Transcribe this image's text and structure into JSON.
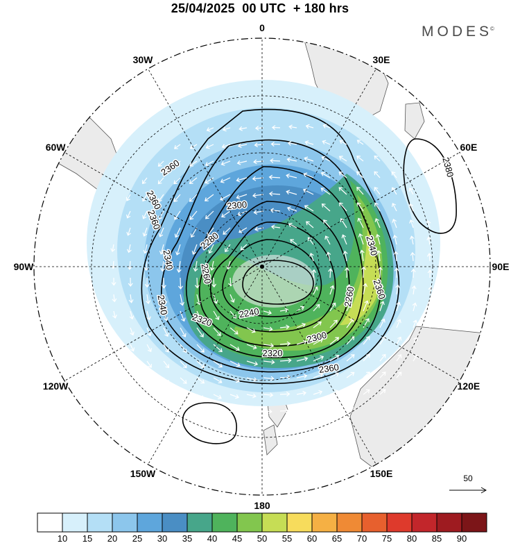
{
  "header": {
    "title": "25/04/2025  00 UTC  + 180 hrs",
    "brand": "MODES",
    "brand_mark": "©"
  },
  "map": {
    "projection": "south-polar-stereographic",
    "longitude_labels": [
      {
        "lon": 0,
        "text": "0"
      },
      {
        "lon": 30,
        "text": "30E"
      },
      {
        "lon": 60,
        "text": "60E"
      },
      {
        "lon": 90,
        "text": "90E"
      },
      {
        "lon": 120,
        "text": "120E"
      },
      {
        "lon": 150,
        "text": "150E"
      },
      {
        "lon": 180,
        "text": "180"
      },
      {
        "lon": -150,
        "text": "150W"
      },
      {
        "lon": -120,
        "text": "120W"
      },
      {
        "lon": -90,
        "text": "90W"
      },
      {
        "lon": -60,
        "text": "60W"
      },
      {
        "lon": -30,
        "text": "30W"
      }
    ],
    "contour_labels": [
      "2360",
      "2360",
      "2360",
      "2300",
      "2280",
      "2340",
      "2340",
      "2340",
      "2260",
      "2320",
      "2240",
      "2300",
      "2260",
      "2320",
      "2360",
      "2360",
      "2380"
    ],
    "wind_reference": {
      "value": "50"
    }
  },
  "colorbar": {
    "ticks": [
      "10",
      "15",
      "20",
      "25",
      "30",
      "35",
      "40",
      "45",
      "50",
      "55",
      "60",
      "65",
      "70",
      "75",
      "80",
      "85",
      "90"
    ],
    "colors": [
      "#ffffff",
      "#d7f0fb",
      "#b4dff6",
      "#8cc6ec",
      "#5ea6dc",
      "#4a8ec4",
      "#47a68a",
      "#4fb35c",
      "#82c64e",
      "#c6dd55",
      "#f7dc5c",
      "#f5b044",
      "#ef8a35",
      "#e7602e",
      "#de3a2c",
      "#c2262b",
      "#9e1b20",
      "#7c1518"
    ]
  },
  "colors": {
    "land": "#ebebeb",
    "coast": "#555555",
    "contour": "#000000",
    "arrows": "#ffffff"
  }
}
